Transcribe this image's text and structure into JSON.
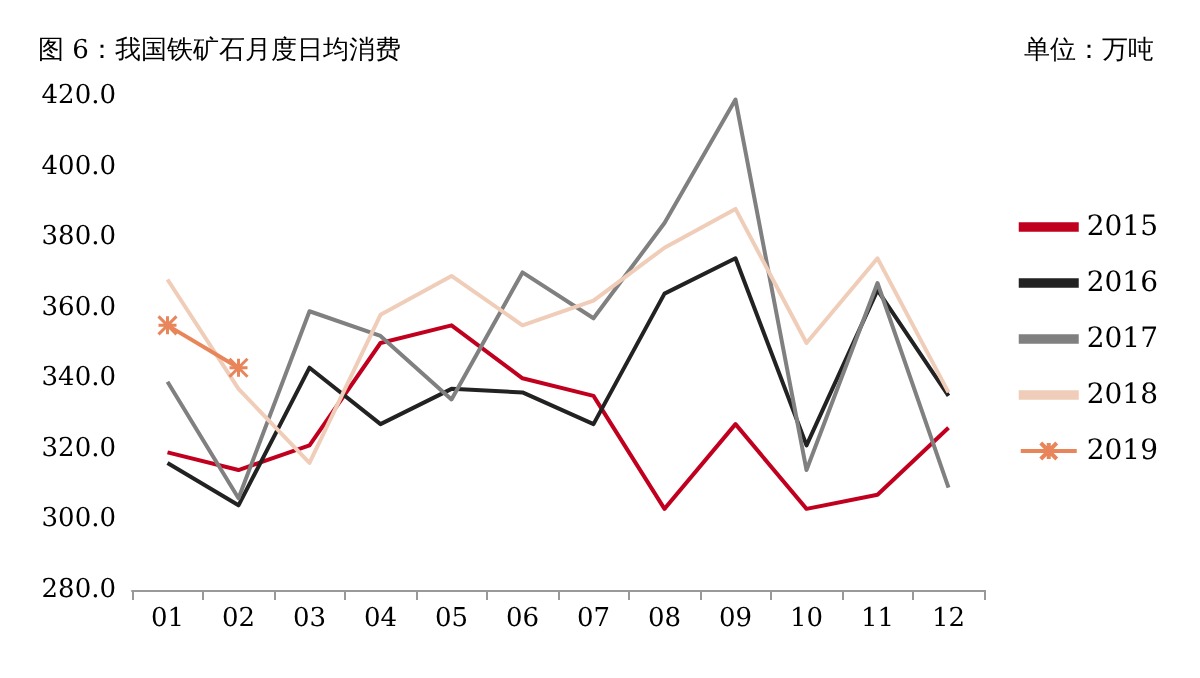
{
  "chart_data": {
    "type": "line",
    "title": "图 6：我国铁矿石月度日均消费",
    "annotations": [
      "单位：万吨"
    ],
    "categories": [
      "01",
      "02",
      "03",
      "04",
      "05",
      "06",
      "07",
      "08",
      "09",
      "10",
      "11",
      "12"
    ],
    "ylim": [
      280,
      420
    ],
    "yticks": [
      {
        "value": 280,
        "label": "280.0"
      },
      {
        "value": 300,
        "label": "300.0"
      },
      {
        "value": 320,
        "label": "320.0"
      },
      {
        "value": 340,
        "label": "340.0"
      },
      {
        "value": 360,
        "label": "360.0"
      },
      {
        "value": 380,
        "label": "380.0"
      },
      {
        "value": 400,
        "label": "400.0"
      },
      {
        "value": 420,
        "label": "420.0"
      }
    ],
    "grid": false,
    "legend": "right",
    "marker": "none",
    "series": [
      {
        "name": "2015",
        "color": "#c0001e",
        "values": [
          319,
          314,
          321,
          350,
          355,
          340,
          335,
          303,
          327,
          303,
          307,
          326
        ]
      },
      {
        "name": "2016",
        "color": "#222222",
        "values": [
          316,
          304,
          343,
          327,
          337,
          336,
          327,
          364,
          374,
          321,
          365,
          335
        ]
      },
      {
        "name": "2017",
        "color": "#808080",
        "values": [
          339,
          306,
          359,
          352,
          334,
          370,
          357,
          384,
          419,
          314,
          367,
          309
        ]
      },
      {
        "name": "2018",
        "color": "#f0cdb8",
        "values": [
          368,
          337,
          316,
          358,
          369,
          355,
          362,
          377,
          388,
          350,
          374,
          336
        ]
      },
      {
        "name": "2019",
        "color": "#e8855a",
        "marker": "cross",
        "values": [
          355,
          343,
          null,
          null,
          null,
          null,
          null,
          null,
          null,
          null,
          null,
          null
        ]
      }
    ]
  }
}
